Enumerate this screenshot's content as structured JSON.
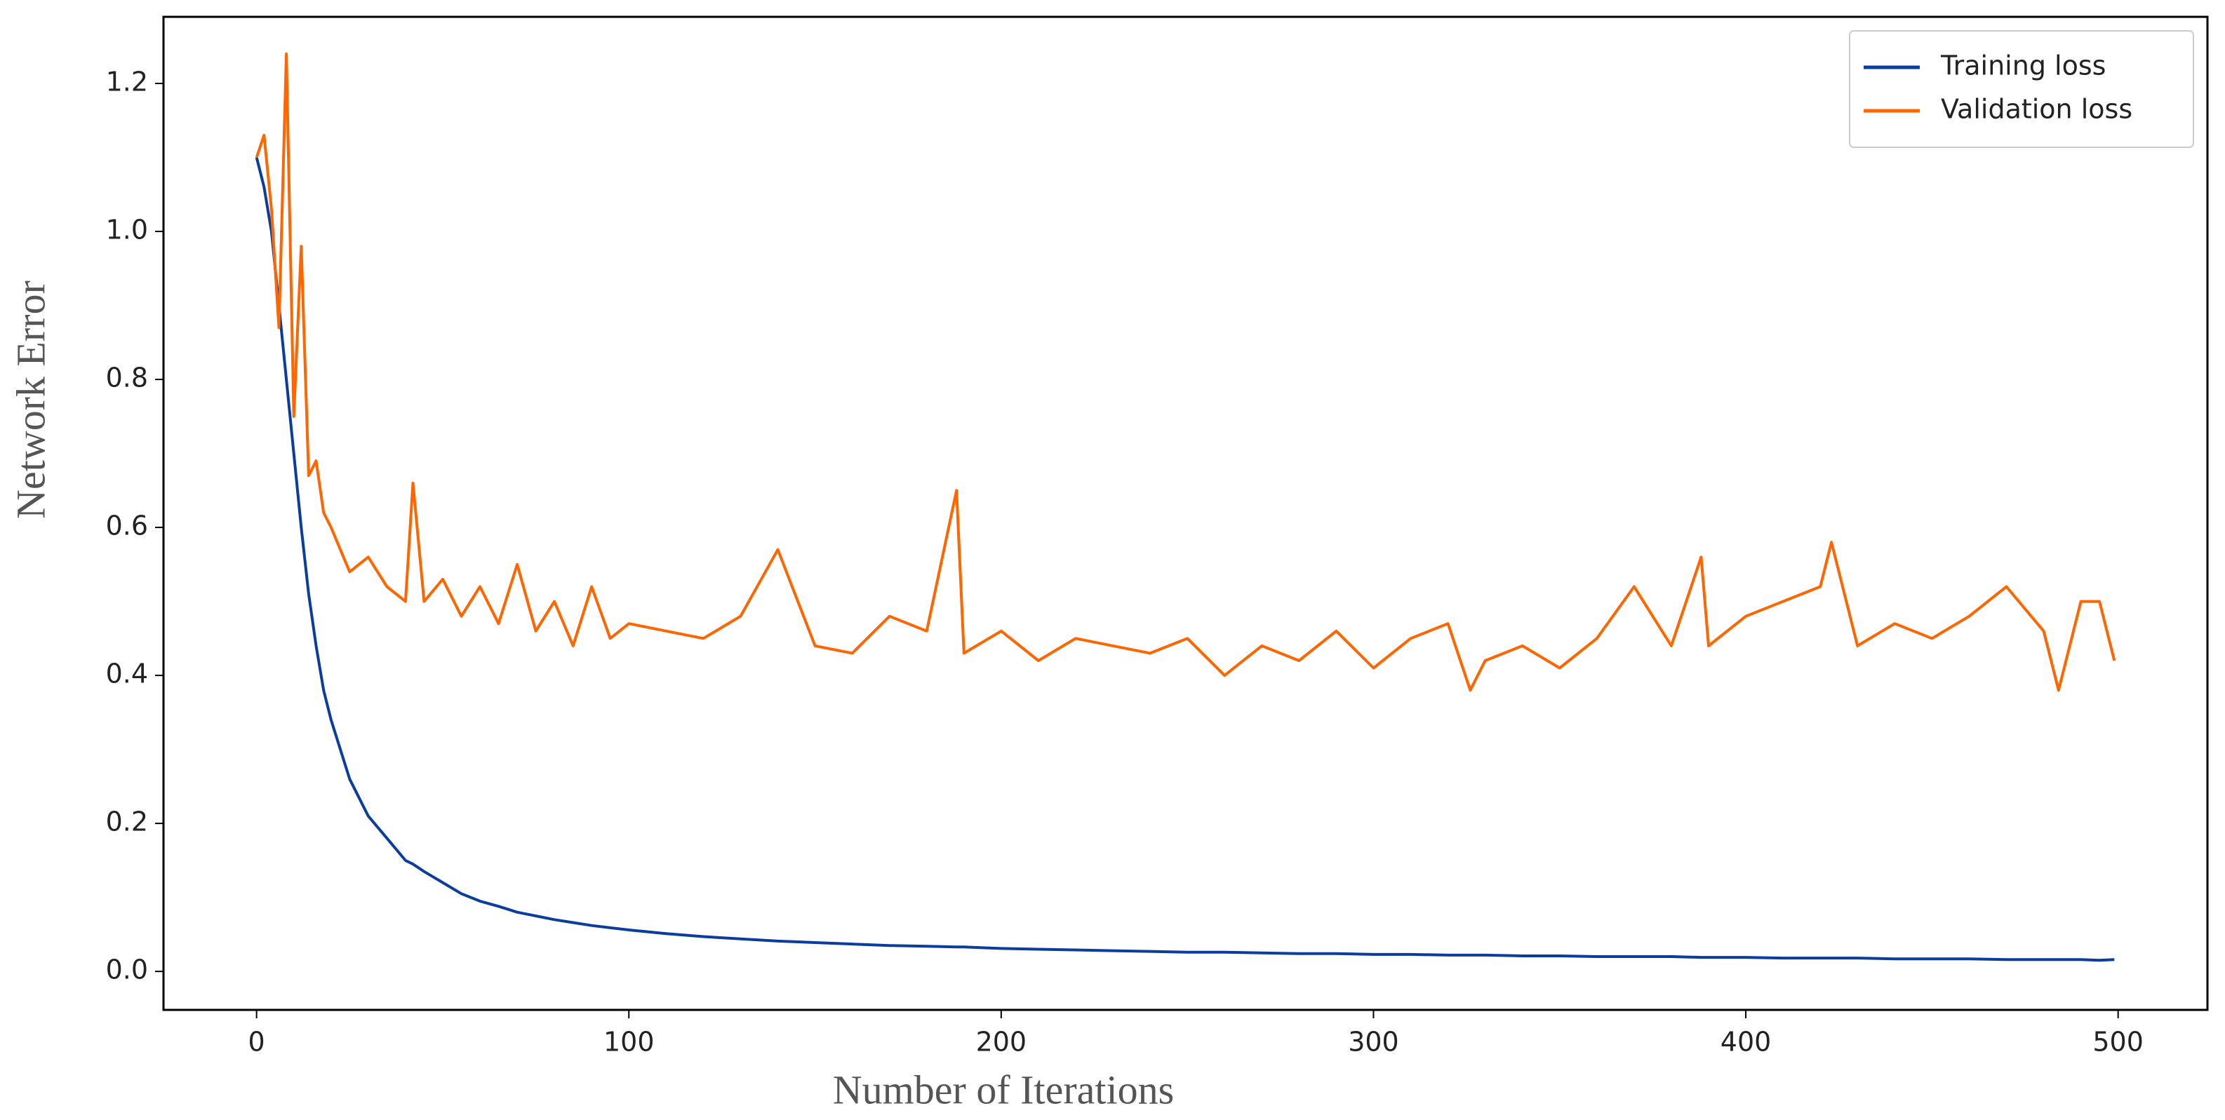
{
  "chart_data": {
    "type": "line",
    "xlabel": "Number of Iterations",
    "ylabel": "Network Error",
    "x": [
      0,
      2,
      4,
      6,
      8,
      10,
      12,
      14,
      16,
      18,
      20,
      25,
      30,
      35,
      40,
      42,
      45,
      50,
      55,
      60,
      65,
      70,
      75,
      80,
      85,
      90,
      95,
      100,
      110,
      120,
      130,
      140,
      150,
      160,
      170,
      180,
      188,
      190,
      200,
      210,
      220,
      230,
      240,
      250,
      260,
      270,
      280,
      290,
      300,
      310,
      320,
      326,
      330,
      340,
      350,
      360,
      370,
      380,
      388,
      390,
      400,
      410,
      420,
      423,
      430,
      440,
      450,
      460,
      470,
      480,
      484,
      490,
      495,
      499
    ],
    "series": [
      {
        "name": "Training loss",
        "color": "#0b3d9e",
        "values": [
          1.1,
          1.06,
          1.0,
          0.9,
          0.8,
          0.7,
          0.6,
          0.51,
          0.44,
          0.38,
          0.34,
          0.26,
          0.21,
          0.18,
          0.15,
          0.145,
          0.135,
          0.12,
          0.105,
          0.095,
          0.088,
          0.08,
          0.075,
          0.07,
          0.066,
          0.062,
          0.059,
          0.056,
          0.051,
          0.047,
          0.044,
          0.041,
          0.039,
          0.037,
          0.035,
          0.034,
          0.033,
          0.033,
          0.031,
          0.03,
          0.029,
          0.028,
          0.027,
          0.026,
          0.026,
          0.025,
          0.024,
          0.024,
          0.023,
          0.023,
          0.022,
          0.022,
          0.022,
          0.021,
          0.021,
          0.02,
          0.02,
          0.02,
          0.019,
          0.019,
          0.019,
          0.018,
          0.018,
          0.018,
          0.018,
          0.017,
          0.017,
          0.017,
          0.016,
          0.016,
          0.016,
          0.016,
          0.015,
          0.016
        ]
      },
      {
        "name": "Validation loss",
        "color": "#ff6600",
        "values": [
          1.1,
          1.13,
          1.03,
          0.87,
          1.24,
          0.75,
          0.98,
          0.67,
          0.69,
          0.62,
          0.6,
          0.54,
          0.56,
          0.52,
          0.5,
          0.66,
          0.5,
          0.53,
          0.48,
          0.52,
          0.47,
          0.55,
          0.46,
          0.5,
          0.44,
          0.52,
          0.45,
          0.47,
          0.46,
          0.45,
          0.48,
          0.57,
          0.44,
          0.43,
          0.48,
          0.46,
          0.65,
          0.43,
          0.46,
          0.42,
          0.45,
          0.44,
          0.43,
          0.45,
          0.4,
          0.44,
          0.42,
          0.46,
          0.41,
          0.45,
          0.47,
          0.38,
          0.42,
          0.44,
          0.41,
          0.45,
          0.52,
          0.44,
          0.56,
          0.44,
          0.48,
          0.5,
          0.52,
          0.58,
          0.44,
          0.47,
          0.45,
          0.48,
          0.52,
          0.46,
          0.38,
          0.5,
          0.5,
          0.42
        ]
      }
    ],
    "xlim": [
      -25,
      524
    ],
    "ylim": [
      -0.052,
      1.29
    ],
    "xticks": [
      0,
      100,
      200,
      300,
      400,
      500
    ],
    "yticks": [
      {
        "value": 0,
        "label": "0.0"
      },
      0.2,
      0.4,
      0.6,
      0.8,
      {
        "value": 1,
        "label": "1.0"
      },
      1.2
    ],
    "grid": false,
    "legend": "upper right"
  }
}
